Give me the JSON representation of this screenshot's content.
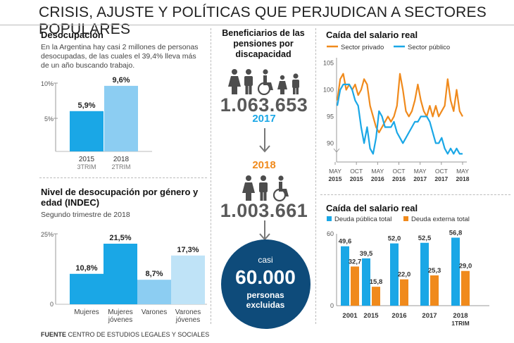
{
  "title": "CRISIS, AJUSTE Y POLÍTICAS QUE PERJUDICAN A SECTORES POPULARES",
  "footer": {
    "label": "FUENTE",
    "text": " CENTRO DE ESTUDIOS LEGALES Y SOCIALES"
  },
  "unemployment": {
    "title": "Desocupación",
    "description": "En la Argentina hay casi 2 millones de personas desocupadas, de las cuales el 39,4% lleva más de un año buscando trabajo.",
    "chart_data": {
      "type": "bar",
      "title": "Desocupación",
      "categories": [
        "2015",
        "2018"
      ],
      "sublabels": [
        "3TRIM",
        "2TRIM"
      ],
      "values": [
        5.9,
        9.6
      ],
      "value_labels": [
        "5,9%",
        "9,6%"
      ],
      "yticks": [
        "5%",
        "10%"
      ],
      "ylim": [
        0,
        10
      ],
      "colors": [
        "#1aa7e6",
        "#8ccdf2"
      ]
    }
  },
  "gender_age": {
    "title": "Nivel de desocupación por género y edad (INDEC)",
    "subtitle": "Segundo trimestre de 2018",
    "chart_data": {
      "type": "bar",
      "categories": [
        "Mujeres",
        "Mujeres jóvenes",
        "Varones",
        "Varones jóvenes"
      ],
      "values": [
        10.8,
        21.5,
        8.7,
        17.3
      ],
      "value_labels": [
        "10,8%",
        "21,5%",
        "8,7%",
        "17,3%"
      ],
      "yticks": [
        "0",
        "25%"
      ],
      "ylim": [
        0,
        25
      ],
      "colors": [
        "#1aa7e6",
        "#1aa7e6",
        "#8ccdf2",
        "#bfe3f7"
      ]
    }
  },
  "pensions": {
    "title": "Beneficiarios de las pensiones por discapacidad",
    "value_2017": "1.063.653",
    "year_2017": "2017",
    "year_2018": "2018",
    "value_2018": "1.003.661",
    "circle_top": "casi",
    "circle_number": "60.000",
    "circle_bottom": "personas excluidas",
    "colors": {
      "blue": "#1aa7e6",
      "orange": "#f08a1c",
      "circle": "#0e4b7a",
      "icons": "#4d4d4d"
    }
  },
  "salary": {
    "title": "Caída del salario real",
    "chart_data": {
      "type": "line",
      "title": "Caída del salario real",
      "series": [
        {
          "name": "Sector privado",
          "color": "#f08a1c",
          "values": [
            98,
            102,
            103,
            100,
            101,
            100,
            101,
            99,
            100,
            102,
            101,
            97,
            95,
            93,
            92,
            93,
            94,
            95,
            94,
            95,
            97,
            103,
            100,
            96,
            95,
            96,
            98,
            101,
            98,
            96,
            95,
            97,
            95,
            97,
            95,
            96,
            97,
            102,
            98,
            96,
            100,
            96,
            95
          ]
        },
        {
          "name": "Sector público",
          "color": "#1aa7e6",
          "values": [
            97,
            100,
            101,
            101,
            101,
            100,
            98,
            97,
            93,
            90,
            93,
            89,
            88,
            91,
            96,
            95,
            93,
            93,
            93,
            94,
            92,
            91,
            90,
            91,
            92,
            93,
            94,
            94,
            95,
            95,
            95,
            94,
            92,
            90,
            90,
            91,
            89,
            88,
            89,
            88,
            89,
            88,
            88
          ]
        }
      ],
      "x_tick_labels": [
        [
          "MAY",
          "2015"
        ],
        [
          "OCT",
          "2015"
        ],
        [
          "MAY",
          "2016"
        ],
        [
          "OCT",
          "2016"
        ],
        [
          "MAY",
          "2017"
        ],
        [
          "OCT",
          "2017"
        ],
        [
          "MAY",
          "2018"
        ]
      ],
      "yticks": [
        90,
        95,
        100,
        105
      ],
      "ylim": [
        87,
        106
      ]
    }
  },
  "debt": {
    "title": "Caída del salario real",
    "chart_data": {
      "type": "bar",
      "categories": [
        "2001",
        "2015",
        "2016",
        "2017",
        "2018"
      ],
      "sublabels": [
        "",
        "",
        "",
        "",
        "1TRIM"
      ],
      "series": [
        {
          "name": "Deuda pública total",
          "color": "#1aa7e6",
          "values": [
            49.6,
            39.5,
            52.0,
            52.5,
            56.8
          ],
          "labels": [
            "49,6",
            "39,5",
            "52,0",
            "52,5",
            "56,8"
          ]
        },
        {
          "name": "Deuda externa total",
          "color": "#f08a1c",
          "values": [
            32.7,
            15.8,
            22.0,
            25.3,
            29.0
          ],
          "labels": [
            "32,7",
            "15,8",
            "22,0",
            "25,3",
            "29,0"
          ]
        }
      ],
      "yticks": [
        0,
        60
      ],
      "ylim": [
        0,
        60
      ]
    }
  }
}
